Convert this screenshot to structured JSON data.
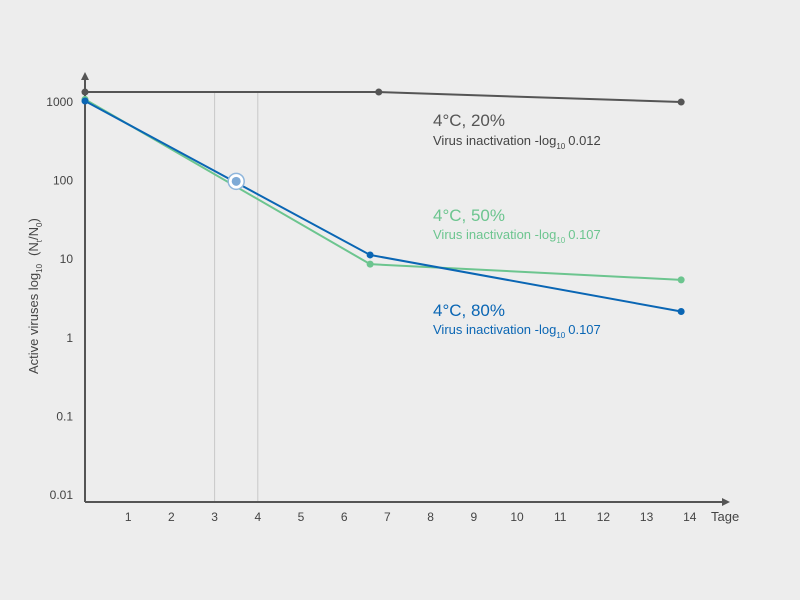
{
  "chart_data": {
    "type": "line",
    "title": "",
    "xlabel": "Tage",
    "ylabel": {
      "main": "Active viruses  log",
      "sub": "10",
      "suffix_parts": [
        "(N",
        "t",
        "/N",
        "0",
        ")"
      ]
    },
    "x_ticks": [
      1,
      2,
      3,
      4,
      5,
      6,
      7,
      8,
      9,
      10,
      11,
      12,
      13,
      14
    ],
    "y_ticks": [
      {
        "value": 1000,
        "label": "1000"
      },
      {
        "value": 100,
        "label": "100"
      },
      {
        "value": 10,
        "label": "10"
      },
      {
        "value": 1,
        "label": "1"
      },
      {
        "value": 0.1,
        "label": "0.1"
      },
      {
        "value": 0.01,
        "label": "0.01"
      }
    ],
    "xlim": [
      0,
      14.8
    ],
    "ylim": [
      0.01,
      1000
    ],
    "yscale": "log",
    "vertical_reference_lines": [
      3,
      4
    ],
    "highlight_point": {
      "x": 3.5,
      "y": 95
    },
    "series": [
      {
        "name": "4°C, 20%",
        "color": "#555555",
        "annotation": {
          "title": "4°C, 20%",
          "line": "Virus inactivation -log",
          "sub": "10",
          "value": "0.012"
        },
        "points": [
          [
            0,
            1300
          ],
          [
            6.8,
            1300
          ],
          [
            13.8,
            970
          ]
        ]
      },
      {
        "name": "4°C, 50%",
        "color": "#6cc58f",
        "annotation": {
          "title": "4°C, 50%",
          "line": "Virus inactivation -log",
          "sub": "10",
          "value": "0.107"
        },
        "points": [
          [
            0,
            1050
          ],
          [
            6.6,
            8.4
          ],
          [
            13.8,
            5.3
          ]
        ]
      },
      {
        "name": "4°C, 80%",
        "color": "#0a66b4",
        "annotation": {
          "title": "4°C, 80%",
          "line": "Virus inactivation -log",
          "sub": "10",
          "value": "0.107"
        },
        "points": [
          [
            0,
            1000
          ],
          [
            6.6,
            11
          ],
          [
            13.8,
            2.1
          ]
        ]
      }
    ]
  }
}
